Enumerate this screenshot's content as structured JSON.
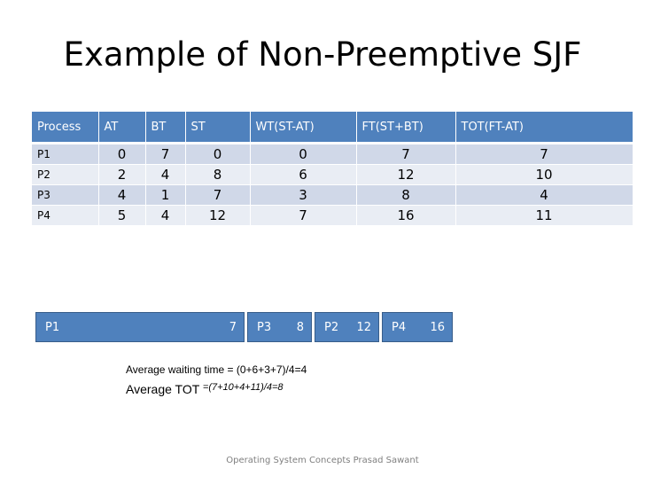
{
  "slide": {
    "title": "Example of Non-Preemptive SJF",
    "footer": "Operating System Concepts Prasad Sawant"
  },
  "table": {
    "headers": [
      "Process",
      "AT",
      "BT",
      "ST",
      "WT(ST-AT)",
      "FT(ST+BT)",
      "TOT(FT-AT)"
    ],
    "rows": [
      {
        "process": "P1",
        "at": "0",
        "bt": "7",
        "st": "0",
        "wt": "0",
        "ft": "7",
        "tot": "7"
      },
      {
        "process": "P2",
        "at": "2",
        "bt": "4",
        "st": "8",
        "wt": "6",
        "ft": "12",
        "tot": "10"
      },
      {
        "process": "P3",
        "at": "4",
        "bt": "1",
        "st": "7",
        "wt": "3",
        "ft": "8",
        "tot": "4"
      },
      {
        "process": "P4",
        "at": "5",
        "bt": "4",
        "st": "12",
        "wt": "7",
        "ft": "16",
        "tot": "11"
      }
    ]
  },
  "gantt": [
    {
      "process": "P1",
      "end": "7"
    },
    {
      "process": "P3",
      "end": "8"
    },
    {
      "process": "P2",
      "end": "12"
    },
    {
      "process": "P4",
      "end": "16"
    }
  ],
  "averages": {
    "waiting_text": "Average waiting time = (0+6+3+7)/4=4",
    "tot_label": "Average TOT",
    "tot_formula": "=(7+10+4+11)/4=8"
  },
  "colors": {
    "header_blue": "#4f81bd",
    "row_odd": "#d0d8e8",
    "row_even": "#e9edf4"
  }
}
